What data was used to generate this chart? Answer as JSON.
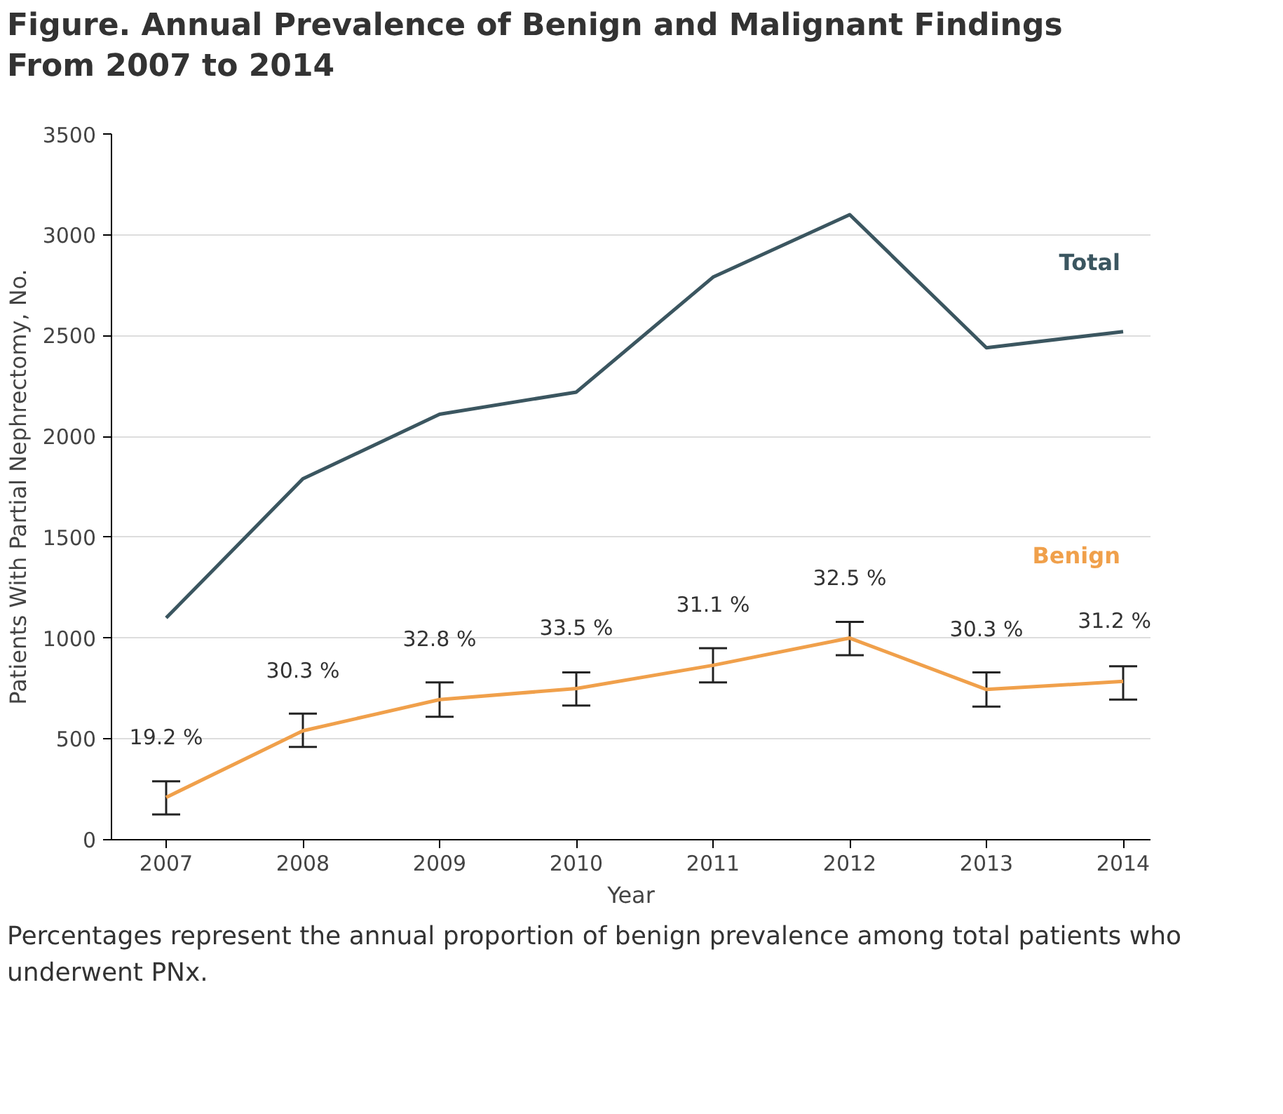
{
  "chart_data": {
    "type": "line",
    "title": "Figure. Annual Prevalence of Benign and Malignant Findings\nFrom 2007 to 2014",
    "xlabel": "Year",
    "ylabel": "Patients With Partial Nephrectomy, No.",
    "x": [
      2007,
      2008,
      2009,
      2010,
      2011,
      2012,
      2013,
      2014
    ],
    "series": [
      {
        "name": "Total",
        "color": "#3b5660",
        "values": [
          1100,
          1790,
          2110,
          2220,
          2790,
          3100,
          2440,
          2520
        ]
      },
      {
        "name": "Benign",
        "color": "#f0a04b",
        "values": [
          210,
          540,
          695,
          750,
          865,
          1000,
          745,
          785
        ],
        "errors": [
          [
            125,
            290
          ],
          [
            460,
            625
          ],
          [
            610,
            780
          ],
          [
            665,
            830
          ],
          [
            780,
            950
          ],
          [
            915,
            1080
          ],
          [
            660,
            830
          ],
          [
            695,
            860
          ]
        ]
      }
    ],
    "xlim": [
      2006.6,
      2014.2
    ],
    "xticks": [
      2007,
      2008,
      2009,
      2010,
      2011,
      2012,
      2013,
      2014
    ],
    "ylim": [
      0,
      3500
    ],
    "yticks": [
      0,
      500,
      1000,
      1500,
      2000,
      2500,
      3000,
      3500
    ],
    "grid": "y",
    "legend": false,
    "marker": "none",
    "line_style": "solid",
    "annotations": [
      {
        "text": "19.2 %",
        "x": 2007,
        "y": 210
      },
      {
        "text": "30.3 %",
        "x": 2008,
        "y": 540
      },
      {
        "text": "32.8 %",
        "x": 2009,
        "y": 695
      },
      {
        "text": "33.5 %",
        "x": 2010,
        "y": 750
      },
      {
        "text": "31.1 %",
        "x": 2011,
        "y": 865
      },
      {
        "text": "32.5 %",
        "x": 2012,
        "y": 1000
      },
      {
        "text": "30.3 %",
        "x": 2013,
        "y": 745
      },
      {
        "text": "31.2 %",
        "x": 2014,
        "y": 785
      },
      "Percentages represent the annual proportion of benign prevalence among total patients who underwent PNx."
    ]
  }
}
